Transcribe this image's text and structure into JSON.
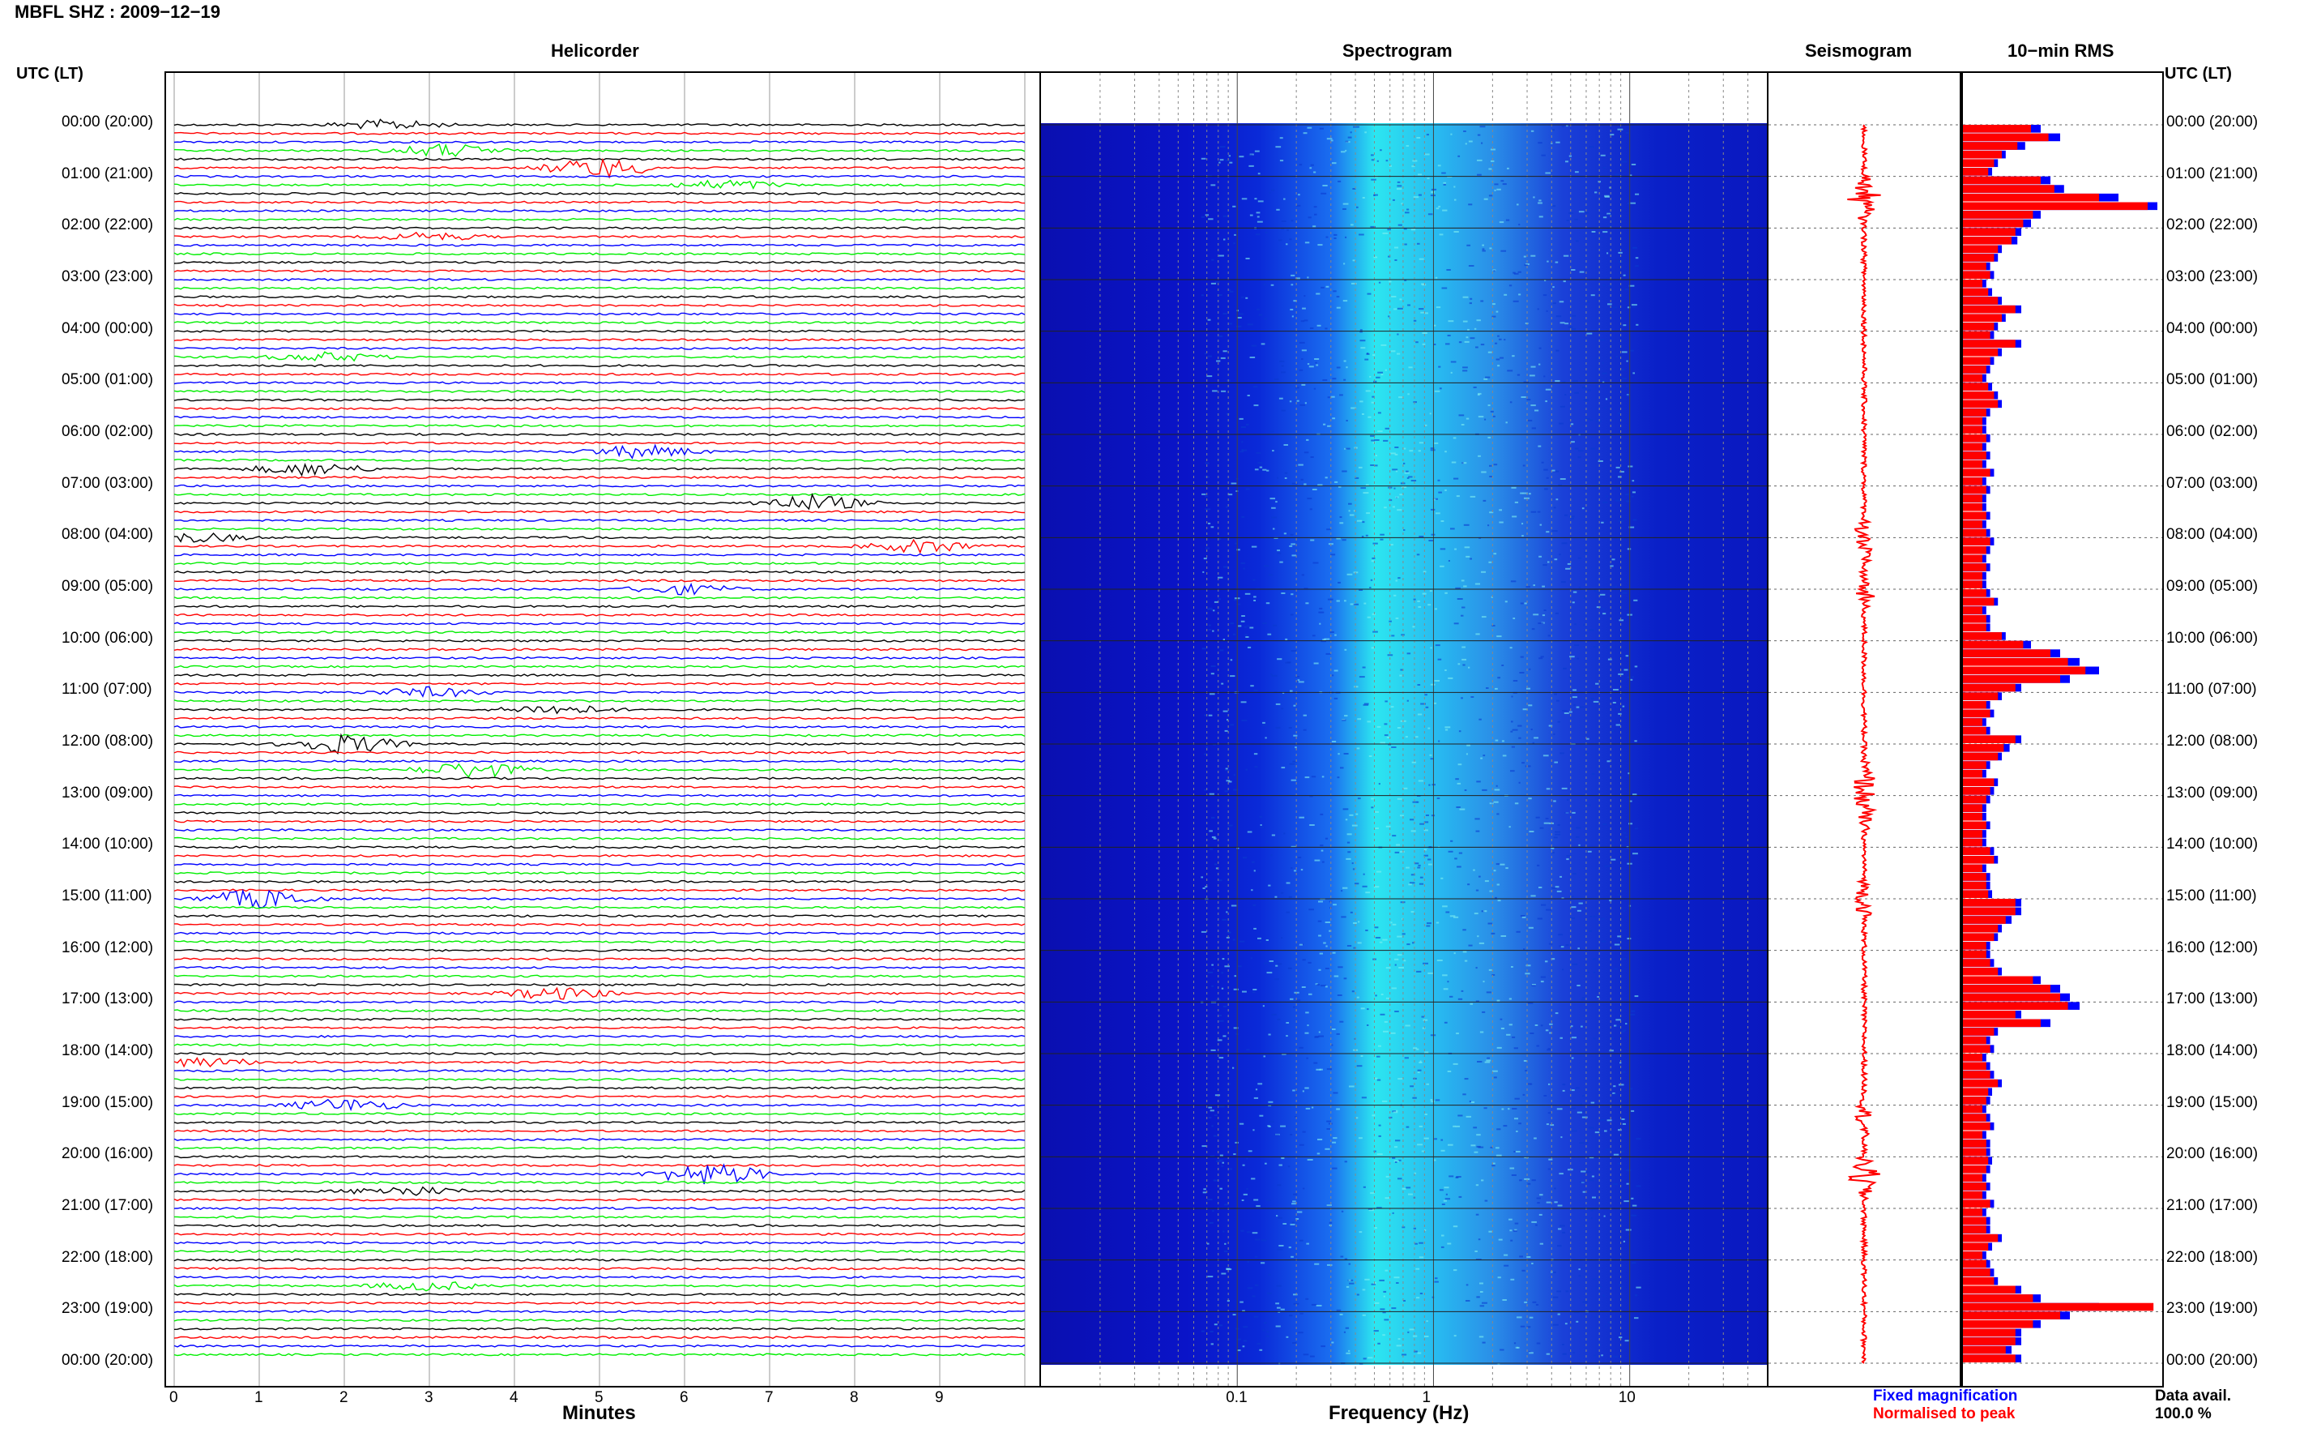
{
  "header": {
    "station_title": "MBFL SHZ : 2009−12−19",
    "utc_label_left": "UTC (LT)",
    "utc_label_right": "UTC (LT)"
  },
  "panels": {
    "helicorder": "Helicorder",
    "spectrogram": "Spectrogram",
    "seismogram": "Seismogram",
    "rms": "10−min RMS"
  },
  "legend": {
    "fixed": "Fixed magnification",
    "normalised": "Normalised to peak",
    "data_avail_label": "Data avail.",
    "data_avail_value": "100.0 %"
  },
  "colors": {
    "trace_cycle": [
      "#000000",
      "#ff0000",
      "#0000ff",
      "#00ee00"
    ],
    "fixed_bar": "#0000ff",
    "normalised_bar": "#ff0000",
    "spectrogram_low": "#0a14c8",
    "spectrogram_high": "#2ce6f0"
  },
  "chart_data": [
    {
      "type": "line",
      "name": "helicorder",
      "title": "Helicorder",
      "xlabel": "Minutes",
      "x_ticks": [
        "0",
        "1",
        "2",
        "3",
        "4",
        "5",
        "6",
        "7",
        "8",
        "9"
      ],
      "xlim": [
        0,
        10
      ],
      "rows_per_hour": 6,
      "hours": 24,
      "time_labels": [
        "00:00 (20:00)",
        "01:00 (21:00)",
        "02:00 (22:00)",
        "03:00 (23:00)",
        "04:00 (00:00)",
        "05:00 (01:00)",
        "06:00 (02:00)",
        "07:00 (03:00)",
        "08:00 (04:00)",
        "09:00 (05:00)",
        "10:00 (06:00)",
        "11:00 (07:00)",
        "12:00 (08:00)",
        "13:00 (09:00)",
        "14:00 (10:00)",
        "15:00 (11:00)",
        "16:00 (12:00)",
        "17:00 (13:00)",
        "18:00 (14:00)",
        "19:00 (15:00)",
        "20:00 (16:00)",
        "21:00 (17:00)",
        "22:00 (18:00)",
        "23:00 (19:00)",
        "00:00 (20:00)"
      ],
      "events": [
        {
          "row": 0,
          "minute": 2.5,
          "amp": 1.5
        },
        {
          "row": 3,
          "minute": 3.2,
          "amp": 2.0
        },
        {
          "row": 5,
          "minute": 5.0,
          "amp": 3.0
        },
        {
          "row": 7,
          "minute": 6.5,
          "amp": 1.5
        },
        {
          "row": 13,
          "minute": 3.0,
          "amp": 1.2
        },
        {
          "row": 27,
          "minute": 1.8,
          "amp": 1.4
        },
        {
          "row": 38,
          "minute": 5.5,
          "amp": 2.0
        },
        {
          "row": 40,
          "minute": 1.6,
          "amp": 2.0
        },
        {
          "row": 44,
          "minute": 7.5,
          "amp": 2.5
        },
        {
          "row": 48,
          "minute": 0.2,
          "amp": 1.5
        },
        {
          "row": 49,
          "minute": 8.8,
          "amp": 2.0
        },
        {
          "row": 54,
          "minute": 6.0,
          "amp": 1.5
        },
        {
          "row": 66,
          "minute": 3.0,
          "amp": 1.5
        },
        {
          "row": 68,
          "minute": 4.5,
          "amp": 1.5
        },
        {
          "row": 72,
          "minute": 2.0,
          "amp": 3.0
        },
        {
          "row": 75,
          "minute": 3.5,
          "amp": 2.5
        },
        {
          "row": 90,
          "minute": 1.0,
          "amp": 3.0
        },
        {
          "row": 101,
          "minute": 4.5,
          "amp": 1.8
        },
        {
          "row": 109,
          "minute": 0.3,
          "amp": 1.5
        },
        {
          "row": 114,
          "minute": 2.0,
          "amp": 2.0
        },
        {
          "row": 122,
          "minute": 6.3,
          "amp": 3.5
        },
        {
          "row": 124,
          "minute": 2.7,
          "amp": 1.5
        },
        {
          "row": 135,
          "minute": 3.0,
          "amp": 1.4
        }
      ]
    },
    {
      "type": "heatmap",
      "name": "spectrogram",
      "title": "Spectrogram",
      "xlabel": "Frequency (Hz)",
      "x_scale": "log",
      "x_ticks": [
        "0.1",
        "1",
        "10"
      ],
      "xlim": [
        0.01,
        50
      ]
    },
    {
      "type": "line",
      "name": "seismogram",
      "title": "Seismogram",
      "rows": 144,
      "peaks": [
        {
          "row": 8,
          "amp": 0.9
        },
        {
          "row": 48,
          "amp": 0.6
        },
        {
          "row": 48,
          "amp": 0.7
        },
        {
          "row": 54,
          "amp": 0.5
        },
        {
          "row": 76,
          "amp": 0.6
        },
        {
          "row": 79,
          "amp": 0.5
        },
        {
          "row": 90,
          "amp": 0.5
        },
        {
          "row": 115,
          "amp": 0.4
        },
        {
          "row": 122,
          "amp": 1.0
        }
      ]
    },
    {
      "type": "bar",
      "name": "10-min RMS",
      "title": "10−min RMS",
      "orientation": "horizontal",
      "series": [
        {
          "name": "Fixed magnification",
          "values": [
            0.4,
            0.5,
            0.32,
            0.22,
            0.18,
            0.15,
            0.45,
            0.52,
            0.8,
            1.0,
            0.4,
            0.35,
            0.3,
            0.28,
            0.2,
            0.18,
            0.14,
            0.16,
            0.12,
            0.15,
            0.2,
            0.3,
            0.22,
            0.18,
            0.16,
            0.3,
            0.2,
            0.16,
            0.14,
            0.12,
            0.15,
            0.18,
            0.2,
            0.14,
            0.12,
            0.12,
            0.14,
            0.12,
            0.14,
            0.12,
            0.16,
            0.12,
            0.14,
            0.12,
            0.12,
            0.14,
            0.12,
            0.14,
            0.16,
            0.14,
            0.12,
            0.14,
            0.12,
            0.12,
            0.14,
            0.18,
            0.12,
            0.14,
            0.14,
            0.22,
            0.35,
            0.5,
            0.6,
            0.7,
            0.55,
            0.3,
            0.2,
            0.14,
            0.16,
            0.12,
            0.14,
            0.3,
            0.24,
            0.2,
            0.14,
            0.12,
            0.18,
            0.16,
            0.14,
            0.12,
            0.12,
            0.14,
            0.12,
            0.12,
            0.16,
            0.18,
            0.12,
            0.14,
            0.14,
            0.15,
            0.3,
            0.3,
            0.25,
            0.2,
            0.18,
            0.14,
            0.14,
            0.16,
            0.2,
            0.4,
            0.5,
            0.55,
            0.6,
            0.3,
            0.45,
            0.18,
            0.14,
            0.16,
            0.12,
            0.14,
            0.16,
            0.2,
            0.15,
            0.14,
            0.12,
            0.14,
            0.16,
            0.12,
            0.14,
            0.14,
            0.15,
            0.14,
            0.12,
            0.14,
            0.12,
            0.16,
            0.12,
            0.14,
            0.14,
            0.2,
            0.15,
            0.12,
            0.14,
            0.16,
            0.18,
            0.3,
            0.4,
            0.7,
            0.55,
            0.4,
            0.3,
            0.3,
            0.25,
            0.3
          ]
        },
        {
          "name": "Normalised to peak",
          "values": [
            0.35,
            0.44,
            0.28,
            0.2,
            0.16,
            0.13,
            0.4,
            0.47,
            0.7,
            0.95,
            0.36,
            0.31,
            0.27,
            0.25,
            0.18,
            0.16,
            0.12,
            0.14,
            0.1,
            0.13,
            0.18,
            0.27,
            0.2,
            0.16,
            0.14,
            0.27,
            0.18,
            0.14,
            0.12,
            0.1,
            0.13,
            0.16,
            0.18,
            0.12,
            0.1,
            0.1,
            0.12,
            0.1,
            0.12,
            0.1,
            0.14,
            0.1,
            0.12,
            0.1,
            0.1,
            0.12,
            0.1,
            0.12,
            0.14,
            0.12,
            0.1,
            0.12,
            0.1,
            0.1,
            0.12,
            0.16,
            0.1,
            0.12,
            0.12,
            0.2,
            0.31,
            0.45,
            0.54,
            0.63,
            0.5,
            0.27,
            0.18,
            0.12,
            0.14,
            0.1,
            0.12,
            0.27,
            0.21,
            0.18,
            0.12,
            0.1,
            0.16,
            0.14,
            0.12,
            0.1,
            0.1,
            0.12,
            0.1,
            0.1,
            0.14,
            0.16,
            0.1,
            0.12,
            0.12,
            0.13,
            0.27,
            0.27,
            0.22,
            0.18,
            0.16,
            0.12,
            0.12,
            0.14,
            0.18,
            0.36,
            0.45,
            0.5,
            0.54,
            0.27,
            0.4,
            0.16,
            0.12,
            0.14,
            0.1,
            0.12,
            0.14,
            0.18,
            0.13,
            0.12,
            0.1,
            0.12,
            0.14,
            0.1,
            0.12,
            0.12,
            0.13,
            0.12,
            0.1,
            0.12,
            0.1,
            0.14,
            0.1,
            0.12,
            0.12,
            0.18,
            0.13,
            0.1,
            0.12,
            0.14,
            0.16,
            0.27,
            0.36,
            0.98,
            0.5,
            0.36,
            0.27,
            0.27,
            0.22,
            0.27
          ]
        }
      ]
    }
  ]
}
